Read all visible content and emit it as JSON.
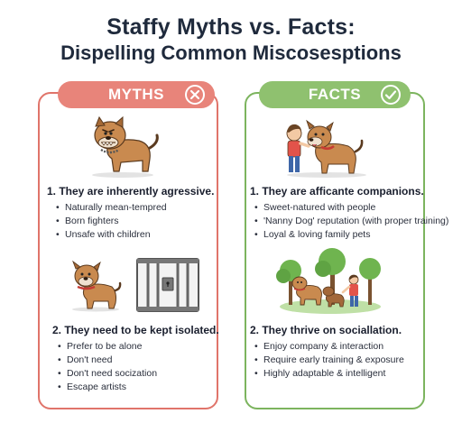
{
  "title": {
    "line1": "Staffy Myths vs. Facts:",
    "line2": "Dispelling Common Miscosesptions"
  },
  "myths": {
    "banner": "MYTHS",
    "banner_icon": "x-circle-icon",
    "accent": "#e8847a",
    "items": [
      {
        "heading": "1. They are inherently agressive.",
        "bullets": [
          "Naturally mean-tempred",
          "Born fighters",
          "Unsafe with children"
        ]
      },
      {
        "heading": "2. They need to be kept isolated.",
        "bullets": [
          "Prefer to be alone",
          "Don't need",
          "Don't need socization",
          "Escape artists"
        ]
      }
    ]
  },
  "facts": {
    "banner": "FACTS",
    "banner_icon": "check-circle-icon",
    "accent": "#8fc16f",
    "items": [
      {
        "heading": "1. They are afficante companions.",
        "bullets": [
          "Sweet-natured with people",
          "'Nanny Dog' reputation (with proper training)",
          "Loyal & loving family pets"
        ]
      },
      {
        "heading": "2. They thrive on sociallation.",
        "bullets": [
          "Enjoy company & interaction",
          "Require early training & exposure",
          "Highly adaptable & intelligent"
        ]
      }
    ]
  }
}
